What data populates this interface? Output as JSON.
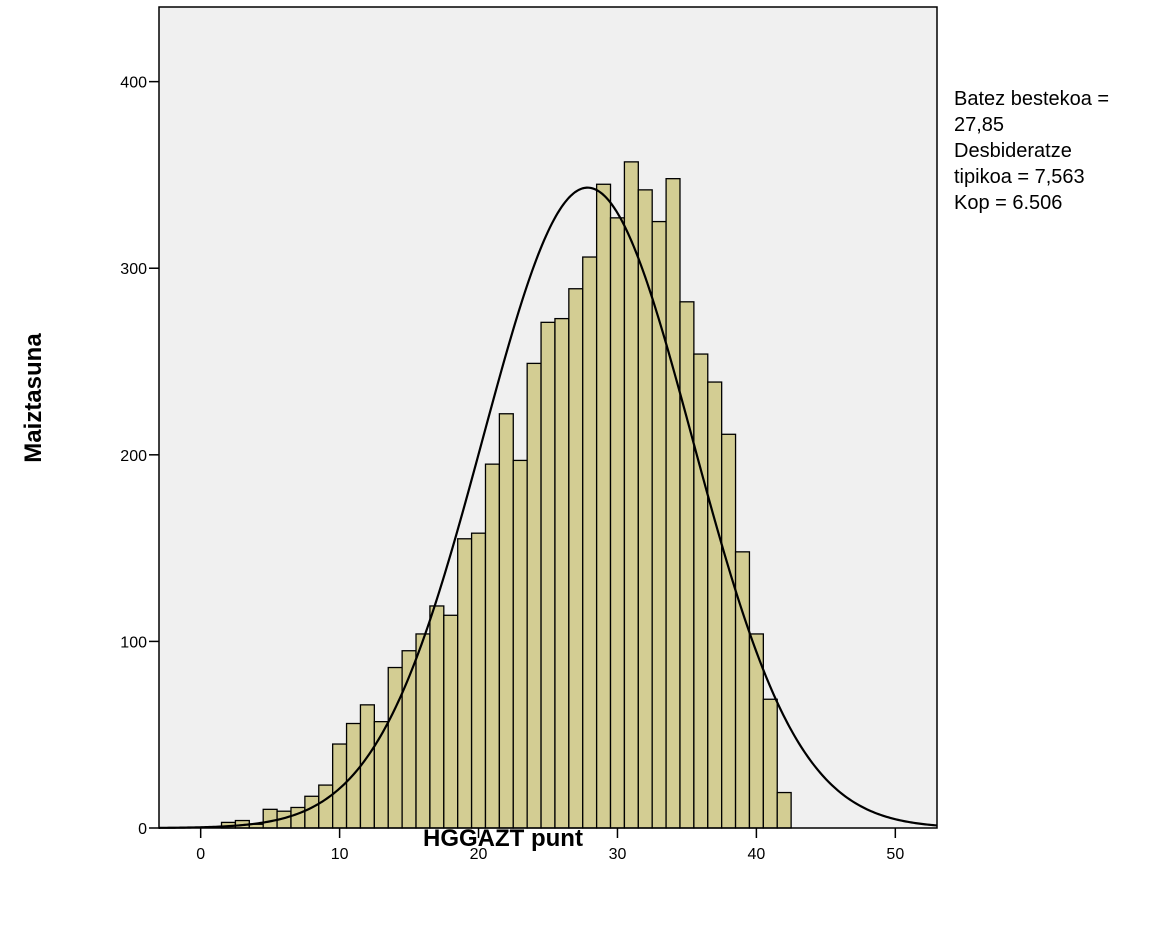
{
  "chart_data": {
    "type": "bar",
    "xlabel": "HGGAZT punt",
    "ylabel": "Maiztasuna",
    "xlim": [
      -3,
      53
    ],
    "ylim": [
      0,
      440
    ],
    "x_ticks": [
      0,
      10,
      20,
      30,
      40,
      50
    ],
    "y_ticks": [
      0,
      100,
      200,
      300,
      400
    ],
    "bin_width": 1,
    "bins": [
      {
        "x": 2,
        "value": 3
      },
      {
        "x": 3,
        "value": 4
      },
      {
        "x": 4,
        "value": 2
      },
      {
        "x": 5,
        "value": 10
      },
      {
        "x": 6,
        "value": 9
      },
      {
        "x": 7,
        "value": 11
      },
      {
        "x": 8,
        "value": 17
      },
      {
        "x": 9,
        "value": 23
      },
      {
        "x": 10,
        "value": 45
      },
      {
        "x": 11,
        "value": 56
      },
      {
        "x": 12,
        "value": 66
      },
      {
        "x": 13,
        "value": 57
      },
      {
        "x": 14,
        "value": 86
      },
      {
        "x": 15,
        "value": 95
      },
      {
        "x": 16,
        "value": 104
      },
      {
        "x": 17,
        "value": 119
      },
      {
        "x": 18,
        "value": 114
      },
      {
        "x": 19,
        "value": 155
      },
      {
        "x": 20,
        "value": 158
      },
      {
        "x": 21,
        "value": 195
      },
      {
        "x": 22,
        "value": 222
      },
      {
        "x": 23,
        "value": 197
      },
      {
        "x": 24,
        "value": 249
      },
      {
        "x": 25,
        "value": 271
      },
      {
        "x": 26,
        "value": 273
      },
      {
        "x": 27,
        "value": 289
      },
      {
        "x": 28,
        "value": 306
      },
      {
        "x": 29,
        "value": 345
      },
      {
        "x": 30,
        "value": 327
      },
      {
        "x": 31,
        "value": 357
      },
      {
        "x": 32,
        "value": 342
      },
      {
        "x": 33,
        "value": 325
      },
      {
        "x": 34,
        "value": 348
      },
      {
        "x": 35,
        "value": 282
      },
      {
        "x": 36,
        "value": 254
      },
      {
        "x": 37,
        "value": 239
      },
      {
        "x": 38,
        "value": 211
      },
      {
        "x": 39,
        "value": 148
      },
      {
        "x": 40,
        "value": 104
      },
      {
        "x": 41,
        "value": 69
      },
      {
        "x": 42,
        "value": 19
      }
    ],
    "normal_curve": {
      "mean": 27.85,
      "sd": 7.563,
      "n": 6506
    },
    "plot_background": "#f0f0f0",
    "bar_fill": "#d3cd93",
    "bar_stroke": "#000000"
  },
  "stats": {
    "line1": "Batez bestekoa =",
    "line2": "27,85",
    "line3": "Desbideratze",
    "line4": "tipikoa = 7,563",
    "line5": "Kop = 6.506"
  }
}
